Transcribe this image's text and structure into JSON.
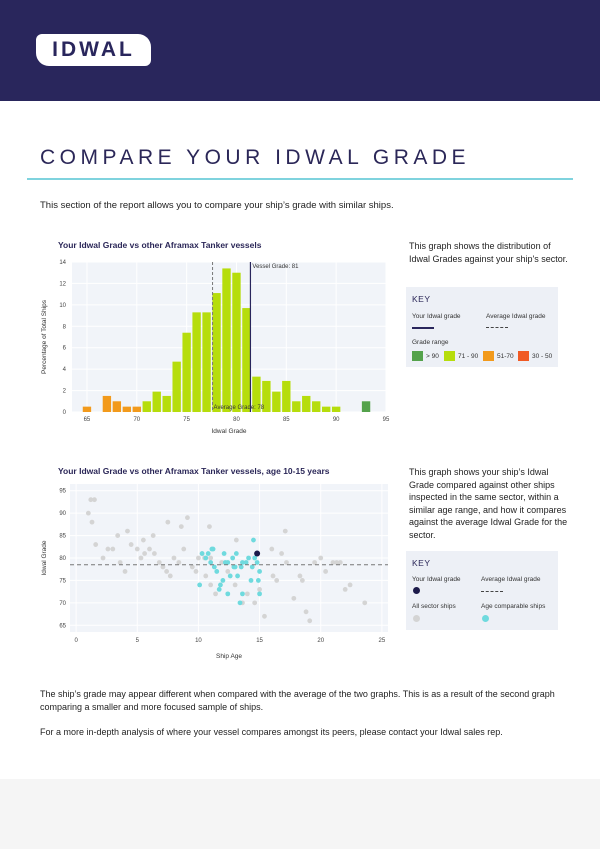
{
  "logo": {
    "text": "IDWAL"
  },
  "page_title": "COMPARE YOUR IDWAL GRADE",
  "intro": "This section of the report allows you to compare your ship’s grade with similar ships.",
  "chart1": {
    "title": "Your Idwal Grade vs other Aframax Tanker vessels",
    "description": "This graph shows the distribution of Idwal Grades against your ship's sector.",
    "key": {
      "title": "KEY",
      "your_grade": "Your Idwal grade",
      "average_grade": "Average Idwal grade",
      "grade_range": "Grade range",
      "ranges": [
        "> 90",
        "71 - 90",
        "51-70",
        "30 - 50"
      ]
    }
  },
  "chart2": {
    "title": "Your Idwal Grade vs other Aframax Tanker vessels, age 10-15 years",
    "description": "This graph shows your ship’s Idwal Grade compared against other ships inspected in the same sector, within a similar age range, and how it compares against the average Idwal Grade for the sector.",
    "key": {
      "title": "KEY",
      "your_grade": "Your Idwal grade",
      "average_grade": "Average Idwal grade",
      "all_ships": "All sector ships",
      "age_ships": "Age comparable ships"
    }
  },
  "footer": {
    "p1": "The ship’s grade may appear different when compared with the average of the two graphs. This is as a result of the second graph comparing a smaller and more focused sample of ships.",
    "p2": "For a more in-depth analysis of where your vessel compares amongst its peers, please contact your Idwal sales rep."
  },
  "colors": {
    "navy": "#29265c",
    "green": "#54a24b",
    "lime": "#b6dd0c",
    "orange": "#f29a1c",
    "red": "#f05a24",
    "teal": "#6fdade",
    "grey": "#d4d4d4"
  },
  "chart_data": [
    {
      "type": "bar",
      "title": "Your Idwal Grade vs other Aframax Tanker vessels",
      "xlabel": "Idwal Grade",
      "ylabel": "Percentage of Total Ships",
      "xlim": [
        63.5,
        95
      ],
      "ylim": [
        0,
        14
      ],
      "xticks": [
        65,
        70,
        75,
        80,
        85,
        90,
        95
      ],
      "yticks": [
        0,
        2,
        4,
        6,
        8,
        10,
        12,
        14
      ],
      "bin_width": 1,
      "bins": [
        {
          "x": 65,
          "y": 0.5,
          "range": "51-70"
        },
        {
          "x": 67,
          "y": 1.5,
          "range": "51-70"
        },
        {
          "x": 68,
          "y": 1.0,
          "range": "51-70"
        },
        {
          "x": 69,
          "y": 0.5,
          "range": "51-70"
        },
        {
          "x": 70,
          "y": 0.5,
          "range": "51-70"
        },
        {
          "x": 71,
          "y": 1.0,
          "range": "71 - 90"
        },
        {
          "x": 72,
          "y": 1.9,
          "range": "71 - 90"
        },
        {
          "x": 73,
          "y": 1.5,
          "range": "71 - 90"
        },
        {
          "x": 74,
          "y": 4.7,
          "range": "71 - 90"
        },
        {
          "x": 75,
          "y": 7.4,
          "range": "71 - 90"
        },
        {
          "x": 76,
          "y": 9.3,
          "range": "71 - 90"
        },
        {
          "x": 77,
          "y": 9.3,
          "range": "71 - 90"
        },
        {
          "x": 78,
          "y": 11.1,
          "range": "71 - 90"
        },
        {
          "x": 79,
          "y": 13.4,
          "range": "71 - 90"
        },
        {
          "x": 80,
          "y": 13.0,
          "range": "71 - 90"
        },
        {
          "x": 81,
          "y": 9.7,
          "range": "71 - 90"
        },
        {
          "x": 82,
          "y": 3.3,
          "range": "71 - 90"
        },
        {
          "x": 83,
          "y": 2.9,
          "range": "71 - 90"
        },
        {
          "x": 84,
          "y": 1.9,
          "range": "71 - 90"
        },
        {
          "x": 85,
          "y": 2.9,
          "range": "71 - 90"
        },
        {
          "x": 86,
          "y": 1.0,
          "range": "71 - 90"
        },
        {
          "x": 87,
          "y": 1.5,
          "range": "71 - 90"
        },
        {
          "x": 88,
          "y": 1.0,
          "range": "71 - 90"
        },
        {
          "x": 89,
          "y": 0.5,
          "range": "71 - 90"
        },
        {
          "x": 90,
          "y": 0.5,
          "range": "71 - 90"
        },
        {
          "x": 93,
          "y": 1.0,
          "range": "> 90"
        }
      ],
      "vessel_grade": 81,
      "average_grade": 78,
      "vessel_label": "Vessel Grade: 81",
      "average_label": "Average Grade: 78"
    },
    {
      "type": "scatter",
      "title": "Your Idwal Grade vs other Aframax Tanker vessels, age 10-15 years",
      "xlabel": "Ship Age",
      "ylabel": "Idwal Grade",
      "xlim": [
        -0.5,
        25.5
      ],
      "ylim": [
        63.5,
        96.5
      ],
      "xticks": [
        0,
        5,
        10,
        15,
        20,
        25
      ],
      "yticks": [
        65,
        70,
        75,
        80,
        85,
        90,
        95
      ],
      "average_grade": 78.5,
      "vessel": {
        "x": 14.8,
        "y": 81
      },
      "series": [
        {
          "name": "All sector ships",
          "points": [
            [
              1.2,
              93
            ],
            [
              1.5,
              93
            ],
            [
              1,
              90
            ],
            [
              1.3,
              88
            ],
            [
              1.6,
              83
            ],
            [
              2.2,
              80
            ],
            [
              2.6,
              82
            ],
            [
              3,
              82
            ],
            [
              3.6,
              79
            ],
            [
              4,
              77
            ],
            [
              4.2,
              86
            ],
            [
              4.5,
              83
            ],
            [
              5,
              82
            ],
            [
              5.3,
              80
            ],
            [
              5.6,
              81
            ],
            [
              6,
              82
            ],
            [
              6.4,
              81
            ],
            [
              6.8,
              79
            ],
            [
              7.1,
              78
            ],
            [
              7.4,
              77
            ],
            [
              7.7,
              76
            ],
            [
              8,
              80
            ],
            [
              8.4,
              79
            ],
            [
              8.8,
              82
            ],
            [
              9.1,
              89
            ],
            [
              9.5,
              78
            ],
            [
              9.8,
              77
            ],
            [
              10,
              80
            ],
            [
              10.3,
              81
            ],
            [
              10.6,
              76
            ],
            [
              11,
              74
            ],
            [
              11.4,
              72
            ],
            [
              11.9,
              79
            ],
            [
              12.4,
              77
            ],
            [
              13,
              74
            ],
            [
              13.6,
              70
            ],
            [
              14,
              72
            ],
            [
              14.6,
              70
            ],
            [
              15,
              73
            ],
            [
              15.4,
              67
            ],
            [
              16.1,
              76
            ],
            [
              16.4,
              75
            ],
            [
              16.8,
              81
            ],
            [
              17.2,
              79
            ],
            [
              17.8,
              71
            ],
            [
              18.3,
              76
            ],
            [
              18.5,
              75
            ],
            [
              18.8,
              68
            ],
            [
              19.1,
              66
            ],
            [
              19.5,
              79
            ],
            [
              20,
              80
            ],
            [
              20.4,
              77
            ],
            [
              21,
              79
            ],
            [
              21.3,
              79
            ],
            [
              21.6,
              79
            ],
            [
              22,
              73
            ],
            [
              22.4,
              74
            ],
            [
              23.6,
              70
            ],
            [
              3.4,
              85
            ],
            [
              5.5,
              84
            ],
            [
              6.3,
              85
            ],
            [
              7.5,
              88
            ],
            [
              8.6,
              87
            ],
            [
              10.9,
              87
            ],
            [
              13.1,
              84
            ],
            [
              16,
              82
            ],
            [
              17.1,
              86
            ],
            [
              11,
              80
            ],
            [
              10.5,
              80
            ]
          ]
        },
        {
          "name": "Age comparable ships",
          "points": [
            [
              10.1,
              74
            ],
            [
              10.3,
              81
            ],
            [
              10.6,
              80
            ],
            [
              11,
              79
            ],
            [
              11.3,
              78
            ],
            [
              11.5,
              77
            ],
            [
              11.8,
              74
            ],
            [
              12,
              75
            ],
            [
              12.2,
              79
            ],
            [
              12.4,
              72
            ],
            [
              12.6,
              76
            ],
            [
              12.8,
              80
            ],
            [
              13,
              78
            ],
            [
              13.2,
              76
            ],
            [
              13.4,
              70
            ],
            [
              13.6,
              72
            ],
            [
              13.9,
              79
            ],
            [
              14.1,
              80
            ],
            [
              14.3,
              75
            ],
            [
              14.6,
              80
            ],
            [
              14.8,
              79
            ],
            [
              15,
              77
            ],
            [
              14.9,
              75
            ],
            [
              13.1,
              81
            ],
            [
              12.1,
              81
            ],
            [
              11.1,
              82
            ],
            [
              12.9,
              78
            ],
            [
              11.7,
              73
            ],
            [
              14.5,
              84
            ],
            [
              15,
              72
            ],
            [
              11.2,
              82
            ],
            [
              12.4,
              79
            ],
            [
              13.6,
              79
            ],
            [
              14.4,
              78
            ],
            [
              10.8,
              81
            ],
            [
              13.5,
              78
            ]
          ]
        }
      ]
    }
  ]
}
